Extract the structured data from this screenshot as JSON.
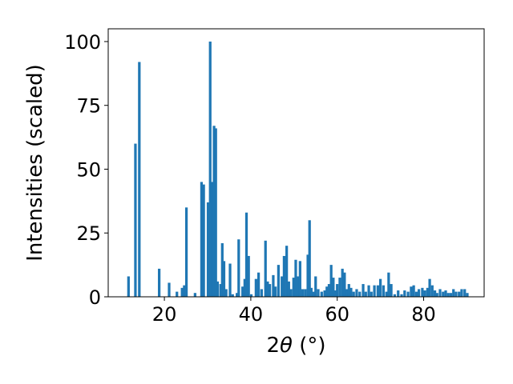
{
  "chart_data": {
    "type": "bar",
    "xlabel_prefix": "2",
    "xlabel_symbol": "θ",
    "xlabel_suffix": " (°)",
    "ylabel": "Intensities (scaled)",
    "xlim": [
      7,
      94
    ],
    "ylim": [
      0,
      105
    ],
    "xticks": [
      20,
      40,
      60,
      80
    ],
    "yticks": [
      0,
      25,
      50,
      75,
      100
    ],
    "bar_width": 0.6,
    "color": "#1f77b4",
    "grid": false,
    "x": [
      11.7,
      13.3,
      14.2,
      18.8,
      21.1,
      22.9,
      24.1,
      24.6,
      25.1,
      27.1,
      28.6,
      29.1,
      30.1,
      30.6,
      31.1,
      31.5,
      31.9,
      32.3,
      33.0,
      33.4,
      33.8,
      34.3,
      35.2,
      35.8,
      36.8,
      37.2,
      38.1,
      38.6,
      39.0,
      39.5,
      40.1,
      41.2,
      41.8,
      42.5,
      43.4,
      43.9,
      44.4,
      45.2,
      45.7,
      46.4,
      47.2,
      47.7,
      48.3,
      48.8,
      49.3,
      49.9,
      50.4,
      50.9,
      51.4,
      52.0,
      52.6,
      53.2,
      53.6,
      54.0,
      54.5,
      55.0,
      55.6,
      56.4,
      57.1,
      57.6,
      58.1,
      58.6,
      59.1,
      59.5,
      60.0,
      60.6,
      61.2,
      61.7,
      62.2,
      62.7,
      63.2,
      63.8,
      64.5,
      65.2,
      66.0,
      66.6,
      67.3,
      67.9,
      68.6,
      69.4,
      70.0,
      70.7,
      71.4,
      71.9,
      72.5,
      73.3,
      74.1,
      74.9,
      75.6,
      76.4,
      77.1,
      77.7,
      78.3,
      78.9,
      79.7,
      80.3,
      80.9,
      81.4,
      82.0,
      82.6,
      83.1,
      83.8,
      84.5,
      85.1,
      85.7,
      86.3,
      86.9,
      87.5,
      88.2,
      88.8,
      89.5,
      90.1
    ],
    "values": [
      8,
      60,
      92,
      11,
      5.5,
      2,
      3.5,
      4.5,
      35,
      1.5,
      45,
      44,
      37,
      100,
      45,
      67,
      66,
      6,
      5,
      21,
      14,
      3,
      13,
      1,
      1.5,
      22.5,
      4,
      7,
      33,
      16,
      1,
      7,
      9.5,
      3,
      22,
      6,
      5,
      8.5,
      4,
      12.5,
      8,
      16,
      20,
      6,
      3,
      7.5,
      14.5,
      8,
      14,
      3,
      3,
      16.5,
      30,
      3.5,
      2,
      8,
      3,
      2,
      2.5,
      4,
      5,
      12.5,
      7.5,
      2.5,
      5,
      7.5,
      11,
      9.5,
      3,
      5,
      3.5,
      2,
      3,
      2,
      5,
      2,
      4.5,
      2,
      4.5,
      4.5,
      7,
      4.5,
      2,
      9.5,
      5,
      1,
      2.5,
      1,
      2.5,
      2,
      4,
      4.5,
      2,
      3,
      3.5,
      2.5,
      3.5,
      7,
      4.5,
      2.5,
      1.5,
      3,
      2,
      2.5,
      1.5,
      1.5,
      3,
      2,
      2,
      3,
      3,
      1.5
    ]
  }
}
